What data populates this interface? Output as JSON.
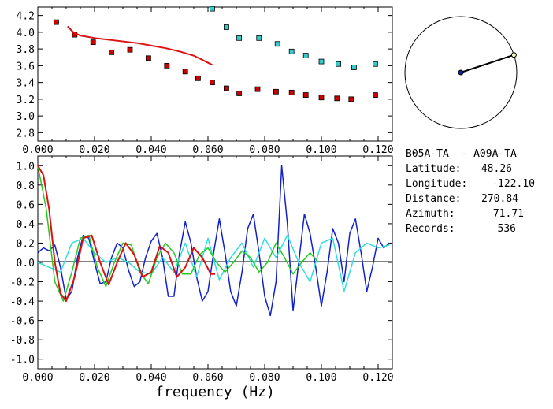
{
  "station": {
    "title": "B05A-TA  - A09A-TA",
    "rows": [
      {
        "label": "Latitude:",
        "value": "48.26"
      },
      {
        "label": "Longitude:",
        "value": "-122.10"
      },
      {
        "label": "Distance:",
        "value": "270.84"
      },
      {
        "label": "Azimuth:",
        "value": "71.71"
      },
      {
        "label": "Records:",
        "value": "536"
      }
    ]
  },
  "chart_data": [
    {
      "type": "scatter",
      "xlim": [
        0,
        0.125
      ],
      "ylim": [
        2.7,
        4.3
      ],
      "x_ticks": [
        "0.000",
        "0.020",
        "0.040",
        "0.060",
        "0.080",
        "0.100",
        "0.120"
      ],
      "y_ticks": [
        "2.8",
        "3.0",
        "3.2",
        "3.4",
        "3.6",
        "3.8",
        "4.0",
        "4.2"
      ],
      "xlabel": "",
      "ylabel": "",
      "series": [
        {
          "color": "#cc0000",
          "style": "markers",
          "x": [
            0.0065,
            0.013,
            0.0195,
            0.026,
            0.0325,
            0.039,
            0.0455,
            0.052,
            0.0565,
            0.0615,
            0.0665,
            0.071,
            0.0775,
            0.084,
            0.0895,
            0.0945,
            0.1,
            0.1055,
            0.1105,
            0.119
          ],
          "y": [
            4.12,
            3.97,
            3.88,
            3.76,
            3.79,
            3.69,
            3.6,
            3.53,
            3.45,
            3.4,
            3.33,
            3.27,
            3.32,
            3.29,
            3.28,
            3.25,
            3.22,
            3.21,
            3.2,
            3.25
          ]
        },
        {
          "color": "#33cccc",
          "style": "markers",
          "x": [
            0.0615,
            0.0665,
            0.071,
            0.078,
            0.0845,
            0.0895,
            0.0945,
            0.1,
            0.106,
            0.1115,
            0.119
          ],
          "y": [
            4.28,
            4.06,
            3.93,
            3.93,
            3.86,
            3.77,
            3.72,
            3.65,
            3.62,
            3.58,
            3.62
          ]
        },
        {
          "color": "#dd1111",
          "style": "line",
          "x": [
            0.0105,
            0.0125,
            0.015,
            0.02,
            0.025,
            0.03,
            0.035,
            0.04,
            0.045,
            0.05,
            0.055,
            0.058,
            0.0615
          ],
          "y": [
            4.07,
            4.0,
            3.96,
            3.93,
            3.91,
            3.89,
            3.87,
            3.84,
            3.81,
            3.77,
            3.72,
            3.67,
            3.61
          ]
        }
      ]
    },
    {
      "type": "line",
      "xlabel": "frequency (Hz)",
      "xlim": [
        0,
        0.125
      ],
      "ylim": [
        -1.1,
        1.1
      ],
      "x_ticks": [
        "0.000",
        "0.020",
        "0.040",
        "0.060",
        "0.080",
        "0.100",
        "0.120"
      ],
      "y_ticks": [
        "1.0",
        "0.8",
        "0.6",
        "0.4",
        "0.2",
        "0.0",
        "-0.2",
        "-0.4",
        "-0.6",
        "-0.8",
        "-1.0"
      ],
      "series": [
        {
          "color": "#1122cc",
          "x": [
            0.0,
            0.002,
            0.004,
            0.006,
            0.008,
            0.01,
            0.012,
            0.014,
            0.016,
            0.018,
            0.02,
            0.022,
            0.024,
            0.026,
            0.028,
            0.03,
            0.032,
            0.034,
            0.036,
            0.038,
            0.04,
            0.042,
            0.044,
            0.046,
            0.048,
            0.05,
            0.052,
            0.054,
            0.056,
            0.058,
            0.06,
            0.062,
            0.064,
            0.066,
            0.068,
            0.07,
            0.072,
            0.074,
            0.076,
            0.078,
            0.08,
            0.082,
            0.084,
            0.086,
            0.088,
            0.09,
            0.092,
            0.094,
            0.096,
            0.098,
            0.1,
            0.102,
            0.104,
            0.106,
            0.108,
            0.11,
            0.112,
            0.114,
            0.116,
            0.118,
            0.12,
            0.122,
            0.124
          ],
          "y": [
            0.1,
            0.15,
            0.12,
            0.18,
            -0.05,
            -0.38,
            -0.3,
            0.05,
            0.28,
            0.25,
            0.0,
            -0.22,
            -0.2,
            0.05,
            0.2,
            0.15,
            -0.08,
            -0.25,
            -0.2,
            0.05,
            0.22,
            0.3,
            0.05,
            -0.35,
            -0.35,
            0.1,
            0.42,
            0.2,
            -0.15,
            -0.4,
            -0.3,
            0.1,
            0.45,
            0.1,
            -0.3,
            -0.45,
            -0.1,
            0.35,
            0.5,
            0.1,
            -0.35,
            -0.55,
            -0.2,
            1.0,
            0.4,
            -0.5,
            0.0,
            0.5,
            0.3,
            -0.05,
            -0.45,
            -0.1,
            0.35,
            0.2,
            -0.2,
            0.3,
            0.45,
            0.1,
            -0.3,
            -0.05,
            0.25,
            0.15,
            0.2
          ]
        },
        {
          "color": "#33dddd",
          "x": [
            0.0,
            0.004,
            0.008,
            0.012,
            0.016,
            0.02,
            0.024,
            0.028,
            0.032,
            0.036,
            0.04,
            0.044,
            0.048,
            0.052,
            0.056,
            0.06,
            0.064,
            0.068,
            0.072,
            0.076,
            0.08,
            0.084,
            0.088,
            0.092,
            0.096,
            0.1,
            0.104,
            0.108,
            0.112,
            0.116,
            0.12,
            0.124
          ],
          "y": [
            0.0,
            -0.05,
            -0.1,
            0.2,
            0.25,
            0.1,
            0.0,
            0.05,
            0.0,
            -0.1,
            -0.12,
            0.05,
            -0.1,
            0.2,
            -0.15,
            0.25,
            -0.18,
            0.05,
            0.2,
            -0.05,
            0.25,
            0.05,
            0.28,
            0.0,
            -0.2,
            0.2,
            0.25,
            -0.3,
            0.1,
            0.2,
            0.15,
            0.18
          ]
        },
        {
          "color": "#22cc22",
          "x": [
            0.0,
            0.003,
            0.006,
            0.009,
            0.012,
            0.015,
            0.018,
            0.021,
            0.024,
            0.027,
            0.03,
            0.033,
            0.036,
            0.039,
            0.042,
            0.045,
            0.048,
            0.051,
            0.054,
            0.057,
            0.06,
            0.063,
            0.066,
            0.069,
            0.072,
            0.075,
            0.078,
            0.081,
            0.084,
            0.087,
            0.09,
            0.093,
            0.096,
            0.099
          ],
          "y": [
            1.0,
            0.55,
            -0.2,
            -0.4,
            -0.1,
            0.25,
            0.28,
            -0.05,
            -0.25,
            0.0,
            0.2,
            0.18,
            -0.1,
            -0.22,
            0.05,
            0.2,
            0.1,
            -0.12,
            -0.12,
            0.08,
            0.15,
            0.0,
            -0.1,
            0.0,
            0.12,
            0.05,
            -0.1,
            0.0,
            0.2,
            0.05,
            -0.12,
            0.0,
            0.1,
            0.0
          ]
        },
        {
          "color": "#dd1111",
          "x": [
            0.0,
            0.002,
            0.004,
            0.006,
            0.008,
            0.01,
            0.013,
            0.016,
            0.019,
            0.022,
            0.025,
            0.028,
            0.031,
            0.034,
            0.037,
            0.04,
            0.043,
            0.046,
            0.049,
            0.052,
            0.055,
            0.058,
            0.061,
            0.0625
          ],
          "y": [
            1.0,
            0.9,
            0.55,
            0.0,
            -0.32,
            -0.4,
            -0.15,
            0.25,
            0.28,
            0.0,
            -0.23,
            0.0,
            0.2,
            0.08,
            -0.15,
            -0.1,
            0.17,
            0.1,
            -0.15,
            -0.05,
            0.15,
            0.05,
            -0.12,
            -0.12
          ]
        }
      ]
    }
  ],
  "map": {
    "center_dot_color": "#1122aa",
    "end_dot_color": "#eeeebb",
    "line_color": "#000000",
    "azimuth_deg": 71.71
  }
}
